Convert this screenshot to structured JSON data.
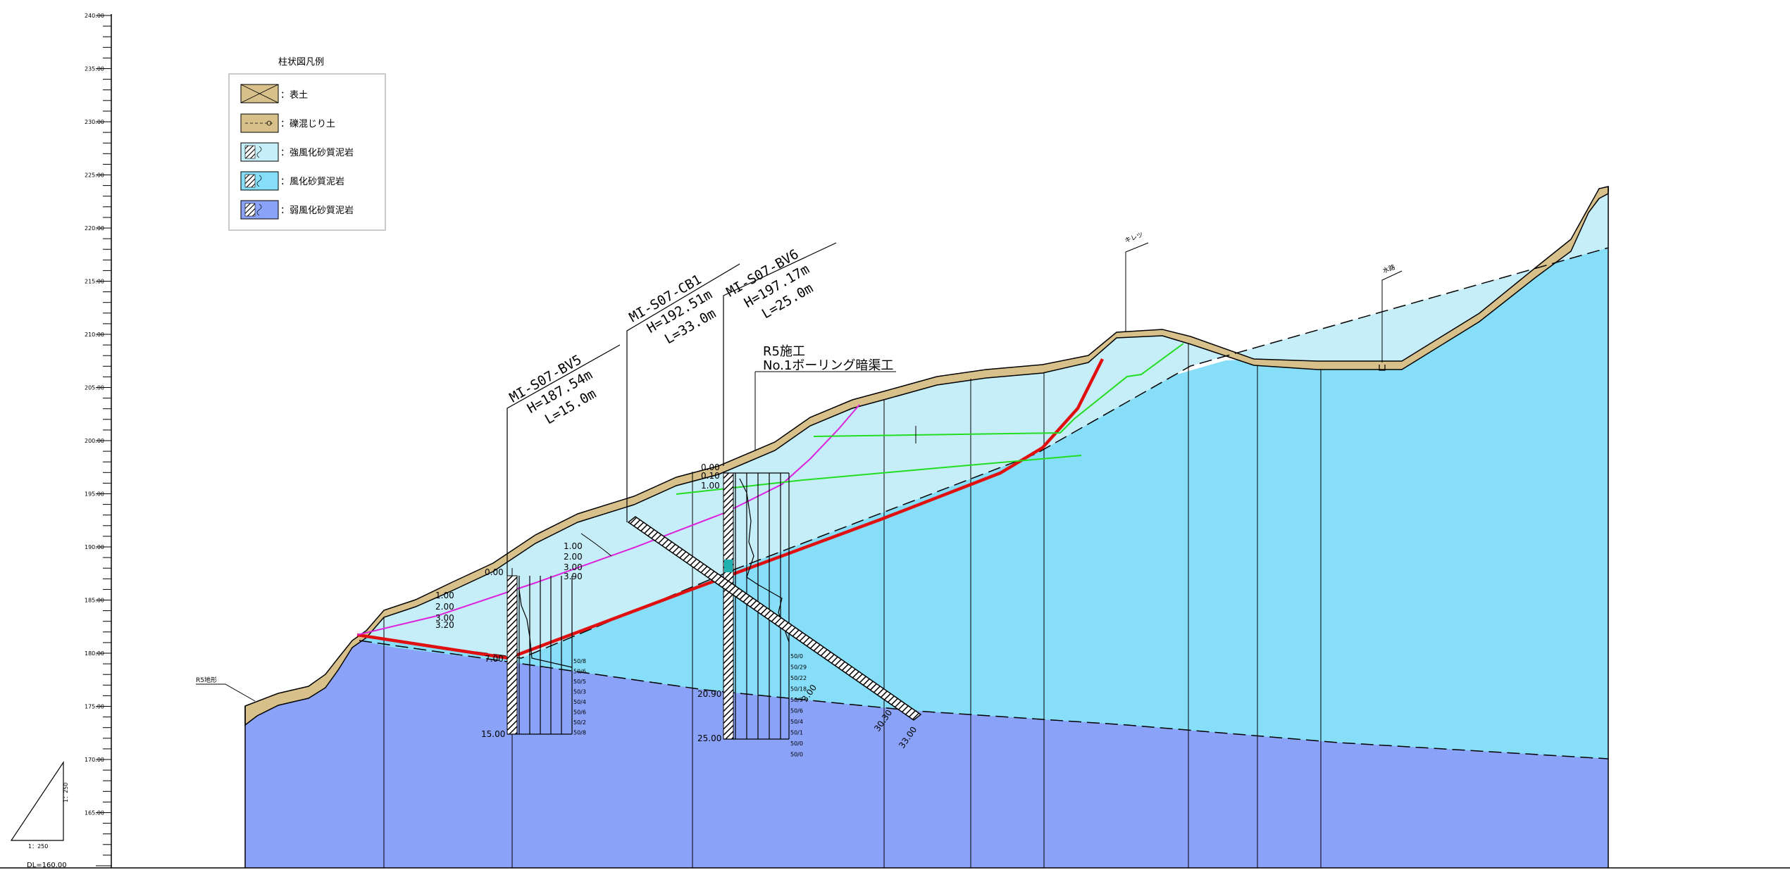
{
  "colors": {
    "topsoil": "#d8c08a",
    "gravel_soil": "#d8c08a",
    "strongly_weathered": "#c6eef9",
    "weathered": "#86def9",
    "weakly_weathered": "#8aa2f8",
    "slip_red": "#e01010",
    "magenta_line": "#dd22dd",
    "green_line": "#22dd22"
  },
  "axis": {
    "ticks": [
      "240.00",
      "235.00",
      "230.00",
      "225.00",
      "220.00",
      "215.00",
      "210.00",
      "205.00",
      "200.00",
      "195.00",
      "190.00",
      "185.00",
      "180.00",
      "175.00",
      "170.00",
      "165.00"
    ],
    "datum": "DL=160.00"
  },
  "scale_triangle": {
    "horizontal": "1：250",
    "vertical": "1：250"
  },
  "legend": {
    "title": "柱状図凡例",
    "items": [
      {
        "label": "：表土",
        "icon": "topsoil-pattern-icon"
      },
      {
        "label": "：礫混じり土",
        "icon": "gravel-soil-pattern-icon"
      },
      {
        "label": "：強風化砂質泥岩",
        "icon": "strongly-weathered-mudstone-icon"
      },
      {
        "label": "：風化砂質泥岩",
        "icon": "weathered-mudstone-icon"
      },
      {
        "label": "：弱風化砂質泥岩",
        "icon": "weakly-weathered-mudstone-icon"
      }
    ]
  },
  "annotations": {
    "r5_terrain": "R5地形",
    "crack": "キレツ",
    "waterway": "水路",
    "r5_work_line1": "R5施工",
    "r5_work_line2": "No.1ボーリング暗渠工"
  },
  "boreholes": [
    {
      "name": "MI-S07-BV5",
      "elevation": "H=187.54m",
      "length": "L=15.0m",
      "depth_labels": [
        "0.00",
        "1.00",
        "2.00",
        "3.00",
        "3.20",
        "7.00",
        "15.00"
      ]
    },
    {
      "name": "MI-S07-CB1",
      "elevation": "H=192.51m",
      "length": "L=33.0m",
      "depth_labels": [
        "1.00",
        "2.00",
        "3.00",
        "3.90",
        "3.00",
        "30.30",
        "33.00"
      ]
    },
    {
      "name": "MI-S07-BV6",
      "elevation": "H=197.17m",
      "length": "L=25.0m",
      "depth_labels": [
        "0.00",
        "0.10",
        "1.00",
        "20.90",
        "25.00"
      ]
    }
  ],
  "nvalue_labels": [
    "50/8",
    "50/6",
    "50/5",
    "50/3",
    "50/4",
    "50/6",
    "50/2",
    "50/8",
    "50/0",
    "50/29",
    "50/22",
    "50/18",
    "50/9",
    "50/6",
    "50/4",
    "50/1",
    "50/0",
    "50/0"
  ]
}
